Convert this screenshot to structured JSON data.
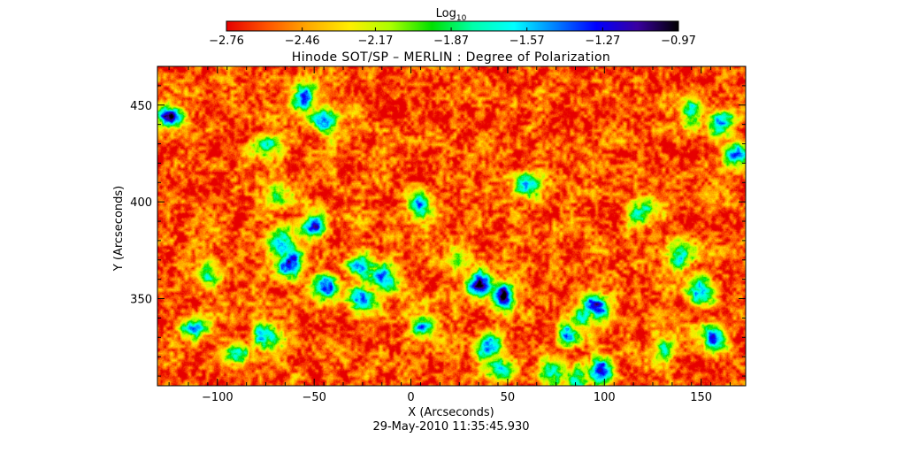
{
  "chart_data": {
    "type": "heatmap",
    "title": "Hinode SOT/SP – MERLIN : Degree of Polarization",
    "xlabel": "X (Arcseconds)",
    "ylabel": "Y (Arcseconds)",
    "xlim": [
      -131,
      173
    ],
    "ylim": [
      305,
      470
    ],
    "x_ticks": [
      -100,
      -50,
      0,
      50,
      100,
      150
    ],
    "x_tick_labels": [
      "−100",
      "−50",
      "0",
      "50",
      "100",
      "150"
    ],
    "y_ticks": [
      350,
      400,
      450
    ],
    "y_tick_labels": [
      "350",
      "400",
      "450"
    ],
    "colorbar": {
      "label_base": "Log",
      "label_sub": "10",
      "min": -2.76,
      "max": -0.97,
      "ticks": [
        -2.76,
        -2.46,
        -2.17,
        -1.87,
        -1.57,
        -1.27,
        -0.97
      ],
      "tick_labels": [
        "−2.76",
        "−2.46",
        "−2.17",
        "−1.87",
        "−1.57",
        "−1.27",
        "−0.97"
      ],
      "colormap": [
        "#e60000",
        "#ff5500",
        "#ffaa00",
        "#ffee00",
        "#aaff00",
        "#00e000",
        "#00ffaa",
        "#00ffff",
        "#0080ff",
        "#0000ff",
        "#3a00a0",
        "#000000"
      ]
    },
    "timestamp": "29-May-2010 11:35:45.930",
    "background_value": -2.6,
    "magnetic_patches": [
      {
        "x": -125,
        "y": 443,
        "peak": -1.3
      },
      {
        "x": -55,
        "y": 455,
        "peak": -1.55
      },
      {
        "x": -45,
        "y": 442,
        "peak": -1.4
      },
      {
        "x": -75,
        "y": 428,
        "peak": -1.75
      },
      {
        "x": -70,
        "y": 405,
        "peak": -1.7
      },
      {
        "x": -68,
        "y": 378,
        "peak": -1.1
      },
      {
        "x": -62,
        "y": 368,
        "peak": -1.15
      },
      {
        "x": -50,
        "y": 388,
        "peak": -1.6
      },
      {
        "x": -45,
        "y": 355,
        "peak": -1.25
      },
      {
        "x": -25,
        "y": 350,
        "peak": -1.4
      },
      {
        "x": -25,
        "y": 367,
        "peak": -1.25
      },
      {
        "x": -15,
        "y": 360,
        "peak": -1.3
      },
      {
        "x": -75,
        "y": 330,
        "peak": -1.25
      },
      {
        "x": -112,
        "y": 335,
        "peak": -1.7
      },
      {
        "x": -105,
        "y": 360,
        "peak": -1.8
      },
      {
        "x": 5,
        "y": 335,
        "peak": -1.7
      },
      {
        "x": 40,
        "y": 325,
        "peak": -1.3
      },
      {
        "x": 45,
        "y": 315,
        "peak": -1.3
      },
      {
        "x": 35,
        "y": 358,
        "peak": -1.4
      },
      {
        "x": 48,
        "y": 352,
        "peak": -1.3
      },
      {
        "x": 90,
        "y": 340,
        "peak": -1.15
      },
      {
        "x": 95,
        "y": 345,
        "peak": -1.05
      },
      {
        "x": 80,
        "y": 332,
        "peak": -1.6
      },
      {
        "x": 98,
        "y": 312,
        "peak": -0.97
      },
      {
        "x": 85,
        "y": 308,
        "peak": -1.2
      },
      {
        "x": 75,
        "y": 312,
        "peak": -1.35
      },
      {
        "x": 140,
        "y": 373,
        "peak": -1.35
      },
      {
        "x": 150,
        "y": 355,
        "peak": -1.2
      },
      {
        "x": 155,
        "y": 330,
        "peak": -1.35
      },
      {
        "x": 160,
        "y": 440,
        "peak": -1.3
      },
      {
        "x": 145,
        "y": 445,
        "peak": -1.55
      },
      {
        "x": 168,
        "y": 425,
        "peak": -1.6
      },
      {
        "x": 120,
        "y": 395,
        "peak": -1.5
      },
      {
        "x": 5,
        "y": 400,
        "peak": -1.5
      },
      {
        "x": 60,
        "y": 410,
        "peak": -1.8
      },
      {
        "x": 25,
        "y": 372,
        "peak": -1.8
      },
      {
        "x": -90,
        "y": 320,
        "peak": -1.75
      },
      {
        "x": 130,
        "y": 325,
        "peak": -1.6
      }
    ]
  }
}
